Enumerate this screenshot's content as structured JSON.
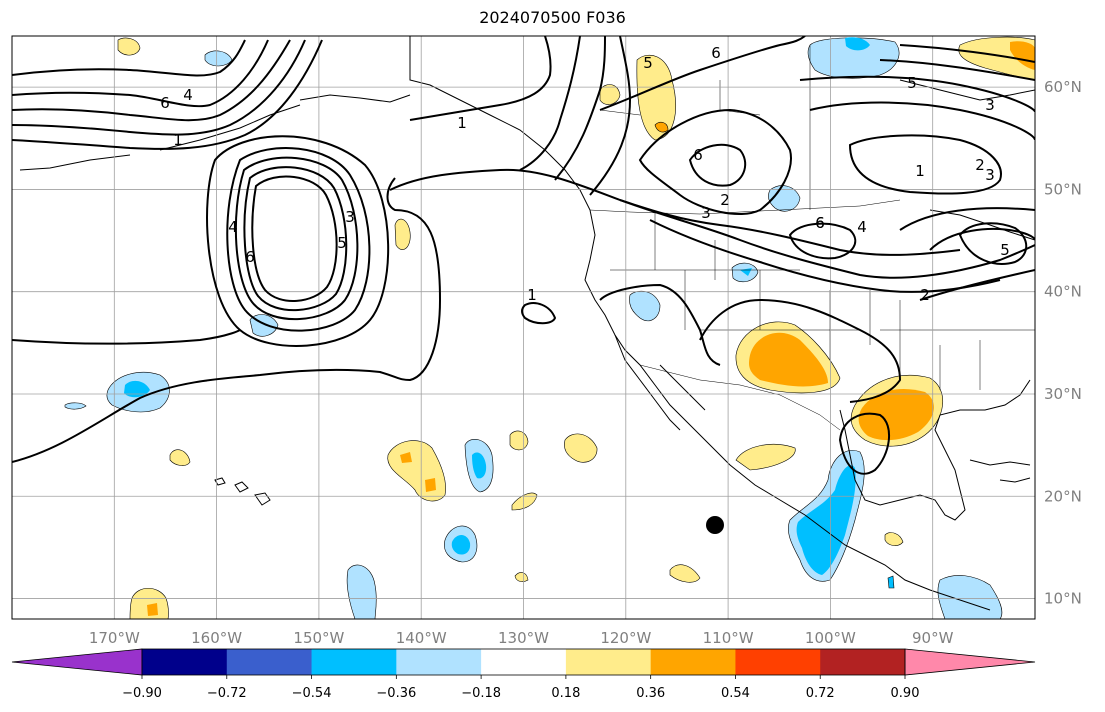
{
  "title": "2024070500 F036",
  "map": {
    "projection": "PlateCarree",
    "extent_lon": [
      -180,
      -80
    ],
    "extent_lat": [
      8,
      65
    ],
    "lon_ticks": [
      "170°W",
      "160°W",
      "150°W",
      "140°W",
      "130°W",
      "120°W",
      "110°W",
      "100°W",
      "90°W"
    ],
    "lat_ticks": [
      "10°N",
      "20°N",
      "30°N",
      "40°N",
      "50°N",
      "60°N"
    ],
    "grid": true,
    "marker": {
      "name": "black-dot",
      "lon": -111,
      "lat": 17
    }
  },
  "contours": {
    "labels": [
      "6",
      "4",
      "1",
      "1",
      "4",
      "3",
      "6",
      "5",
      "3",
      "2",
      "1",
      "5",
      "6",
      "6",
      "6",
      "5",
      "3",
      "6",
      "4",
      "1",
      "2",
      "3",
      "5",
      "2"
    ]
  },
  "colorbar": {
    "ticks": [
      "−0.90",
      "−0.72",
      "−0.54",
      "−0.36",
      "−0.18",
      "0.18",
      "0.36",
      "0.54",
      "0.72",
      "0.90"
    ],
    "colors": [
      "#9932cc",
      "#00008b",
      "#3a5fcd",
      "#00bfff",
      "#b0e2ff",
      "#ffffff",
      "#ffec8b",
      "#ffa500",
      "#ff4000",
      "#b22222",
      "#ff88aa"
    ],
    "extend": "both"
  },
  "colors": {
    "land_outline": "#000000",
    "grid": "#a0a0a0",
    "tick_label": "#808080"
  }
}
